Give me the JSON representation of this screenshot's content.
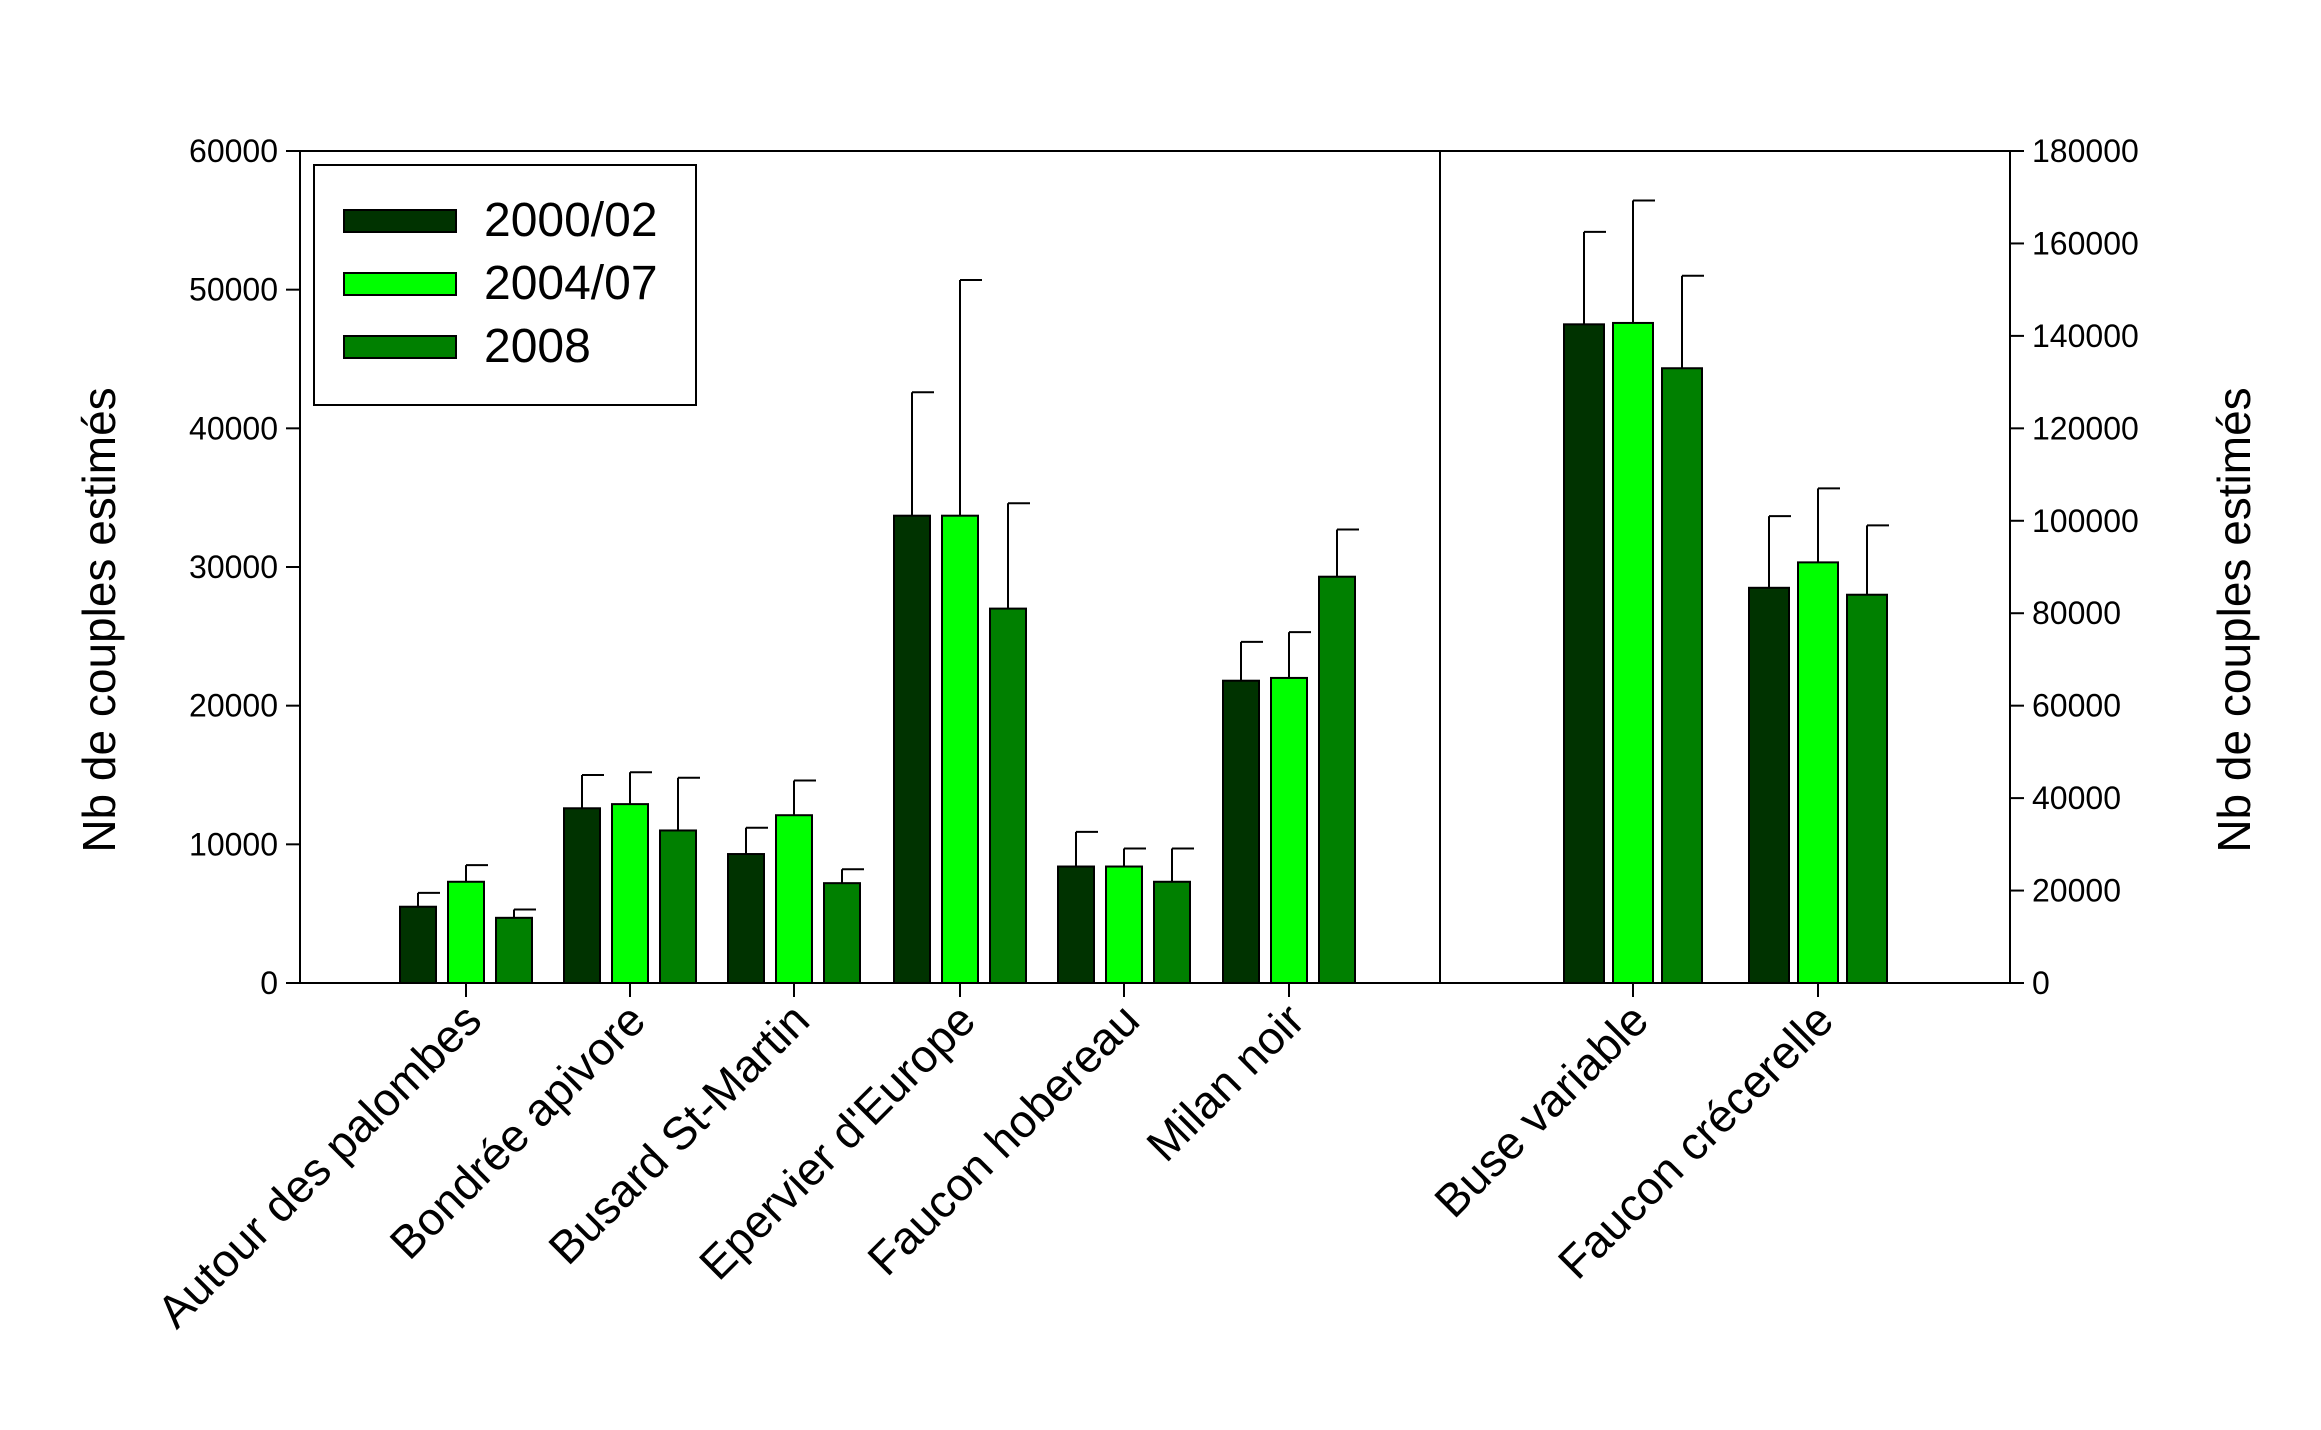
{
  "chart_data": {
    "type": "bar",
    "xlabel": "",
    "ylabel": "Nb de couples estimés",
    "y2label": "Nb de couples estimés",
    "grid": false,
    "legend_position": "top-left",
    "series": [
      {
        "name": "2000/02",
        "color": "#003300"
      },
      {
        "name": "2004/07",
        "color": "#00ff00"
      },
      {
        "name": "2008",
        "color": "#008000"
      }
    ],
    "groups": [
      {
        "axis": "left",
        "ylim": [
          0,
          60000
        ],
        "ticks": [
          "0",
          "10000",
          "20000",
          "30000",
          "40000",
          "50000",
          "60000"
        ],
        "categories": [
          "Autour des palombes",
          "Bondrée apivore",
          "Busard St-Martin",
          "Epervier d'Europe",
          "Faucon hobereau",
          "Milan noir"
        ],
        "values": [
          [
            5500,
            7300,
            4700
          ],
          [
            12600,
            12900,
            11000
          ],
          [
            9300,
            12100,
            7200
          ],
          [
            33700,
            33700,
            27000
          ],
          [
            8400,
            8400,
            7300
          ],
          [
            21800,
            22000,
            29300
          ]
        ],
        "errors": [
          [
            1000,
            1200,
            600
          ],
          [
            2400,
            2300,
            3800
          ],
          [
            1900,
            2500,
            1000
          ],
          [
            8900,
            17000,
            7600
          ],
          [
            2500,
            1300,
            2400
          ],
          [
            2800,
            3300,
            3400
          ]
        ]
      },
      {
        "axis": "right",
        "ylim": [
          0,
          180000
        ],
        "ticks": [
          "0",
          "20000",
          "40000",
          "60000",
          "80000",
          "100000",
          "120000",
          "140000",
          "160000",
          "180000"
        ],
        "categories": [
          "Buse variable",
          "Faucon crécerelle"
        ],
        "values": [
          [
            142500,
            142800,
            133000
          ],
          [
            85500,
            91000,
            84000
          ]
        ],
        "errors": [
          [
            20000,
            26500,
            20000
          ],
          [
            15500,
            16000,
            15000
          ]
        ]
      }
    ]
  }
}
